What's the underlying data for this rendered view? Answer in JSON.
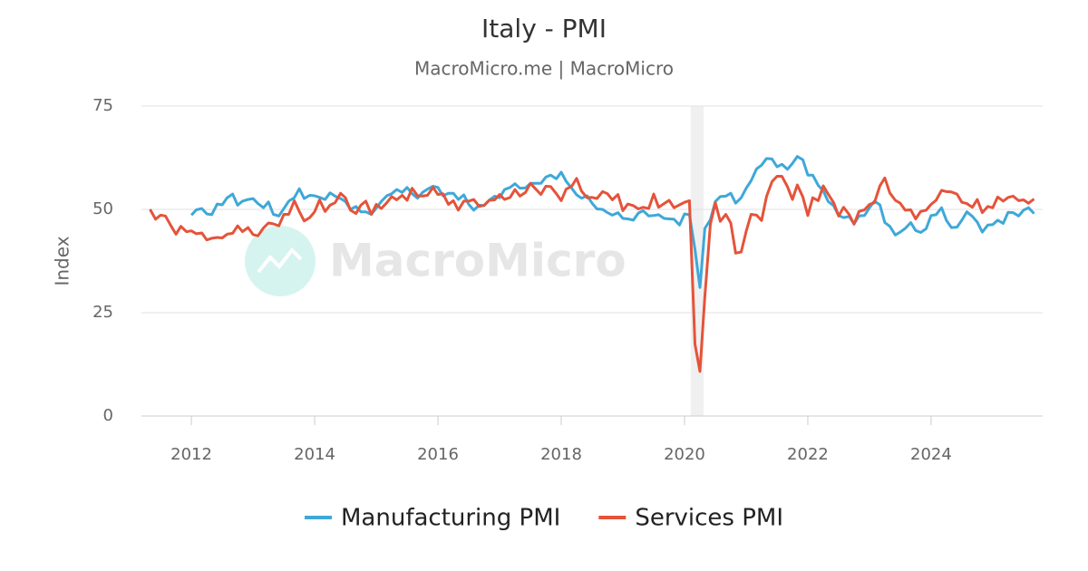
{
  "chart_data": {
    "type": "line",
    "title": "Italy - PMI",
    "subtitle": "MacroMicro.me | MacroMicro",
    "y_label": "Index",
    "watermark": "MacroMicro",
    "xlim": [
      2011.19,
      2025.81
    ],
    "xticks": [
      2012,
      2014,
      2016,
      2018,
      2020,
      2022,
      2024
    ],
    "ylim": [
      0,
      75
    ],
    "yticks": [
      0,
      25,
      50,
      75
    ],
    "grid": true,
    "legend": "bottom",
    "bands": [
      [
        2020.1,
        2020.31
      ]
    ],
    "x": [
      2011.33,
      2011.42,
      2011.5,
      2011.58,
      2011.67,
      2011.75,
      2011.83,
      2011.92,
      2012,
      2012.08,
      2012.17,
      2012.25,
      2012.33,
      2012.42,
      2012.5,
      2012.58,
      2012.67,
      2012.75,
      2012.83,
      2012.92,
      2013,
      2013.08,
      2013.17,
      2013.25,
      2013.33,
      2013.42,
      2013.5,
      2013.58,
      2013.67,
      2013.75,
      2013.83,
      2013.92,
      2014,
      2014.08,
      2014.17,
      2014.25,
      2014.33,
      2014.42,
      2014.5,
      2014.58,
      2014.67,
      2014.75,
      2014.83,
      2014.92,
      2015,
      2015.08,
      2015.17,
      2015.25,
      2015.33,
      2015.42,
      2015.5,
      2015.58,
      2015.67,
      2015.75,
      2015.83,
      2015.92,
      2016,
      2016.08,
      2016.17,
      2016.25,
      2016.33,
      2016.42,
      2016.5,
      2016.58,
      2016.67,
      2016.75,
      2016.83,
      2016.92,
      2017,
      2017.08,
      2017.17,
      2017.25,
      2017.33,
      2017.42,
      2017.5,
      2017.58,
      2017.67,
      2017.75,
      2017.83,
      2017.92,
      2018,
      2018.08,
      2018.17,
      2018.25,
      2018.33,
      2018.42,
      2018.5,
      2018.58,
      2018.67,
      2018.75,
      2018.83,
      2018.92,
      2019,
      2019.08,
      2019.17,
      2019.25,
      2019.33,
      2019.42,
      2019.5,
      2019.58,
      2019.67,
      2019.75,
      2019.83,
      2019.92,
      2020,
      2020.08,
      2020.17,
      2020.25,
      2020.33,
      2020.42,
      2020.5,
      2020.58,
      2020.67,
      2020.75,
      2020.83,
      2020.92,
      2021,
      2021.08,
      2021.17,
      2021.25,
      2021.33,
      2021.42,
      2021.5,
      2021.58,
      2021.67,
      2021.75,
      2021.83,
      2021.92,
      2022,
      2022.08,
      2022.17,
      2022.25,
      2022.33,
      2022.42,
      2022.5,
      2022.58,
      2022.67,
      2022.75,
      2022.83,
      2022.92,
      2023,
      2023.08,
      2023.17,
      2023.25,
      2023.33,
      2023.42,
      2023.5,
      2023.58,
      2023.67,
      2023.75,
      2023.83,
      2023.92,
      2024,
      2024.08,
      2024.17,
      2024.25,
      2024.33,
      2024.42,
      2024.5,
      2024.58,
      2024.67,
      2024.75,
      2024.83,
      2024.92,
      2025,
      2025.08,
      2025.17,
      2025.25,
      2025.33,
      2025.42,
      2025.5,
      2025.58,
      2025.67
    ],
    "series": [
      {
        "name": "Manufacturing PMI",
        "color": "#3ea8d8",
        "values": [
          null,
          null,
          null,
          null,
          null,
          null,
          null,
          null,
          48.6,
          49.9,
          50.2,
          48.9,
          48.7,
          51.3,
          51.1,
          52.8,
          53.7,
          51.0,
          52.0,
          52.4,
          52.6,
          51.4,
          50.4,
          51.8,
          48.8,
          48.4,
          50.2,
          52.0,
          52.8,
          55.0,
          52.6,
          53.4,
          53.3,
          52.9,
          52.4,
          54.0,
          53.2,
          52.6,
          51.9,
          50.0,
          50.7,
          49.4,
          49.4,
          48.8,
          50.3,
          51.9,
          53.3,
          53.8,
          54.8,
          54.1,
          55.3,
          53.8,
          52.7,
          54.1,
          54.9,
          55.6,
          55.3,
          53.3,
          53.9,
          53.9,
          52.4,
          53.5,
          51.2,
          49.8,
          51.0,
          50.9,
          52.2,
          53.2,
          52.8,
          54.8,
          55.3,
          56.2,
          55.1,
          55.2,
          56.3,
          56.3,
          56.3,
          57.8,
          58.3,
          57.4,
          59.0,
          56.8,
          55.1,
          53.5,
          52.7,
          53.3,
          51.5,
          50.1,
          50.0,
          49.2,
          48.6,
          49.2,
          47.8,
          47.7,
          47.4,
          49.1,
          49.7,
          48.4,
          48.5,
          48.7,
          47.8,
          47.7,
          47.6,
          46.2,
          48.9,
          48.7,
          40.3,
          31.1,
          45.4,
          47.5,
          51.9,
          53.1,
          53.2,
          53.9,
          51.5,
          52.8,
          55.1,
          56.9,
          59.8,
          60.7,
          62.3,
          62.2,
          60.3,
          60.9,
          59.7,
          61.1,
          62.8,
          62.0,
          58.3,
          58.3,
          55.8,
          54.5,
          51.9,
          50.9,
          48.5,
          48.0,
          48.3,
          46.5,
          48.4,
          48.5,
          50.4,
          52.0,
          51.1,
          46.8,
          45.9,
          43.8,
          44.5,
          45.4,
          46.8,
          44.9,
          44.4,
          45.3,
          48.5,
          48.7,
          50.4,
          47.3,
          45.6,
          45.7,
          47.4,
          49.4,
          48.3,
          46.9,
          44.5,
          46.2,
          46.3,
          47.4,
          46.6,
          49.3,
          49.2,
          48.4,
          49.8,
          50.4,
          49.0
        ]
      },
      {
        "name": "Services PMI",
        "color": "#e5533a",
        "values": [
          50.0,
          47.6,
          48.6,
          48.4,
          46.0,
          44.0,
          45.9,
          44.6,
          44.8,
          44.1,
          44.3,
          42.6,
          43.0,
          43.2,
          43.1,
          44.0,
          44.2,
          46.0,
          44.6,
          45.6,
          43.9,
          43.6,
          45.5,
          46.7,
          46.5,
          46.0,
          48.8,
          48.8,
          52.1,
          49.5,
          47.2,
          48.0,
          49.4,
          52.3,
          49.5,
          51.0,
          51.6,
          53.9,
          52.8,
          49.8,
          49.0,
          51.0,
          52.0,
          48.8,
          51.2,
          50.2,
          51.6,
          53.1,
          52.3,
          53.4,
          52.2,
          55.1,
          53.3,
          53.2,
          53.4,
          55.3,
          53.6,
          53.8,
          51.2,
          52.1,
          49.8,
          52.0,
          52.0,
          52.4,
          50.7,
          51.0,
          52.2,
          52.3,
          53.6,
          52.4,
          52.9,
          54.8,
          53.2,
          54.1,
          56.3,
          55.0,
          53.6,
          55.6,
          55.5,
          53.8,
          52.1,
          54.9,
          55.6,
          57.5,
          54.4,
          52.8,
          52.9,
          52.6,
          54.3,
          53.8,
          52.3,
          53.6,
          49.7,
          51.3,
          50.9,
          50.1,
          50.5,
          50.2,
          53.7,
          50.5,
          51.4,
          52.2,
          50.4,
          51.1,
          51.7,
          52.1,
          17.4,
          10.8,
          28.9,
          46.4,
          51.6,
          47.1,
          48.8,
          46.7,
          39.4,
          39.7,
          44.7,
          48.8,
          48.6,
          47.3,
          53.1,
          56.7,
          58.0,
          58.0,
          55.5,
          52.4,
          55.9,
          53.0,
          48.5,
          52.8,
          52.1,
          55.7,
          53.7,
          51.6,
          48.4,
          50.5,
          48.8,
          46.4,
          49.5,
          49.9,
          51.2,
          51.6,
          55.7,
          57.6,
          54.0,
          52.2,
          51.5,
          49.8,
          49.9,
          47.7,
          49.5,
          49.8,
          51.2,
          52.2,
          54.6,
          54.3,
          54.2,
          53.7,
          51.7,
          51.4,
          50.5,
          52.4,
          49.2,
          50.7,
          50.4,
          53.0,
          52.0,
          52.9,
          53.2,
          52.1,
          52.3,
          51.5,
          52.5
        ]
      }
    ]
  }
}
